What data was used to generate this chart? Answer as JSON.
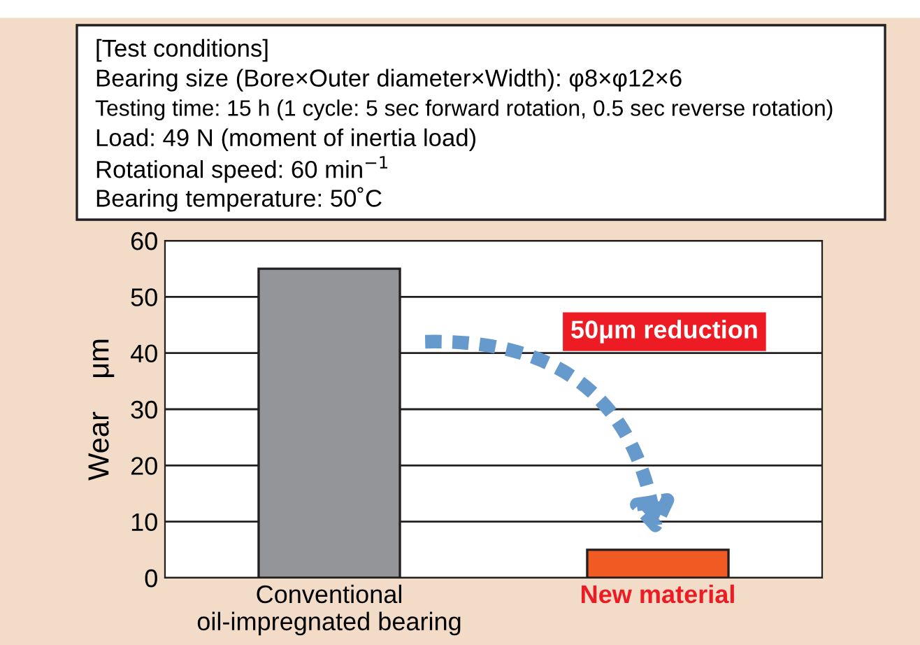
{
  "chart_data": {
    "type": "bar",
    "categories": [
      "Conventional\noil-impregnated bearing",
      "New material"
    ],
    "values": [
      55,
      5
    ],
    "colors": [
      "#939598",
      "#f15a22"
    ],
    "ylabel": "Wear    μm",
    "ylim": [
      0,
      60
    ],
    "yticks": [
      0,
      10,
      20,
      30,
      40,
      50,
      60
    ],
    "grid": "y",
    "annotations": [
      "[Test conditions]",
      "Bearing size (Bore×Outer diameter×Width): φ8×φ12×6",
      "Testing time: 15 h (1 cycle: 5 sec forward rotation, 0.5 sec reverse rotation)",
      "Load: 49 N (moment of inertia load)",
      "Rotational speed: 60 min$^{−1}$",
      "Bearing temperature: 50˚C",
      "50μm reduction"
    ]
  }
}
